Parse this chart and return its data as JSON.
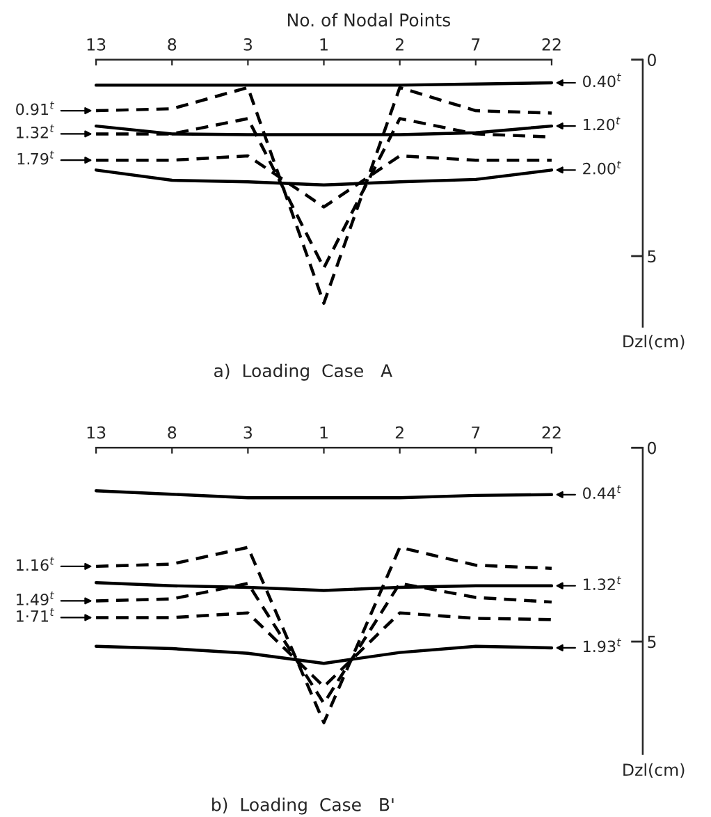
{
  "chart_data": [
    {
      "type": "line",
      "xlabel": "No. of Nodal Points",
      "ylabel": "Dzl(cm)",
      "categories": [
        "13",
        "8",
        "3",
        "1",
        "2",
        "7",
        "22"
      ],
      "ylim": [
        6.8,
        0
      ],
      "yticks": [
        0,
        5
      ],
      "annotations": [
        "a)  Loading  Case   A"
      ],
      "legend": "right",
      "series": [
        {
          "name": "0.40$^{t}$",
          "color": "#000000",
          "line_style": "solid",
          "values": [
            0.65,
            0.65,
            0.65,
            0.65,
            0.65,
            0.62,
            0.59
          ]
        },
        {
          "name": "0.91$^{t}$",
          "color": "#000000",
          "line_style": "dashed",
          "values": [
            1.3,
            1.25,
            0.71,
            6.2,
            0.71,
            1.3,
            1.36
          ]
        },
        {
          "name": "1.20$^{t}$",
          "color": "#000000",
          "line_style": "solid",
          "values": [
            1.69,
            1.89,
            1.91,
            1.91,
            1.91,
            1.86,
            1.69
          ]
        },
        {
          "name": "1.32$^{t}$",
          "color": "#000000",
          "line_style": "dashed",
          "values": [
            1.89,
            1.89,
            1.5,
            5.3,
            1.5,
            1.89,
            1.97
          ]
        },
        {
          "name": "1.79$^{t}$",
          "color": "#000000",
          "line_style": "dashed",
          "values": [
            2.56,
            2.56,
            2.45,
            3.75,
            2.45,
            2.56,
            2.56
          ]
        },
        {
          "name": "2.00$^{t}$",
          "color": "#000000",
          "line_style": "solid",
          "values": [
            2.81,
            3.07,
            3.11,
            3.19,
            3.11,
            3.05,
            2.81
          ]
        }
      ]
    },
    {
      "type": "line",
      "ylabel": "Dzl(cm)",
      "categories": [
        "13",
        "8",
        "3",
        "1",
        "2",
        "7",
        "22"
      ],
      "ylim": [
        7.9,
        0
      ],
      "yticks": [
        0,
        5
      ],
      "annotations": [
        "b)  Loading  Case   B'"
      ],
      "legend": "right",
      "series": [
        {
          "name": "0.44$^{t}$",
          "color": "#000000",
          "line_style": "solid",
          "values": [
            1.11,
            1.2,
            1.29,
            1.29,
            1.29,
            1.23,
            1.21
          ]
        },
        {
          "name": "1.16$^{t}$",
          "color": "#000000",
          "line_style": "dashed",
          "values": [
            3.06,
            3.0,
            2.57,
            7.09,
            2.57,
            3.03,
            3.11
          ]
        },
        {
          "name": "1.32$^{t}$",
          "color": "#000000",
          "line_style": "solid",
          "values": [
            3.48,
            3.56,
            3.6,
            3.68,
            3.6,
            3.56,
            3.56
          ]
        },
        {
          "name": "1.49$^{t}$",
          "color": "#000000",
          "line_style": "dashed",
          "values": [
            3.95,
            3.9,
            3.5,
            6.59,
            3.5,
            3.86,
            3.98
          ]
        },
        {
          "name": "1·71$^{t}$",
          "color": "#000000",
          "line_style": "dashed",
          "values": [
            4.38,
            4.38,
            4.26,
            6.16,
            4.26,
            4.4,
            4.43
          ]
        },
        {
          "name": "1.93$^{t}$",
          "color": "#000000",
          "line_style": "solid",
          "values": [
            5.12,
            5.18,
            5.3,
            5.56,
            5.28,
            5.12,
            5.16
          ]
        }
      ]
    }
  ]
}
